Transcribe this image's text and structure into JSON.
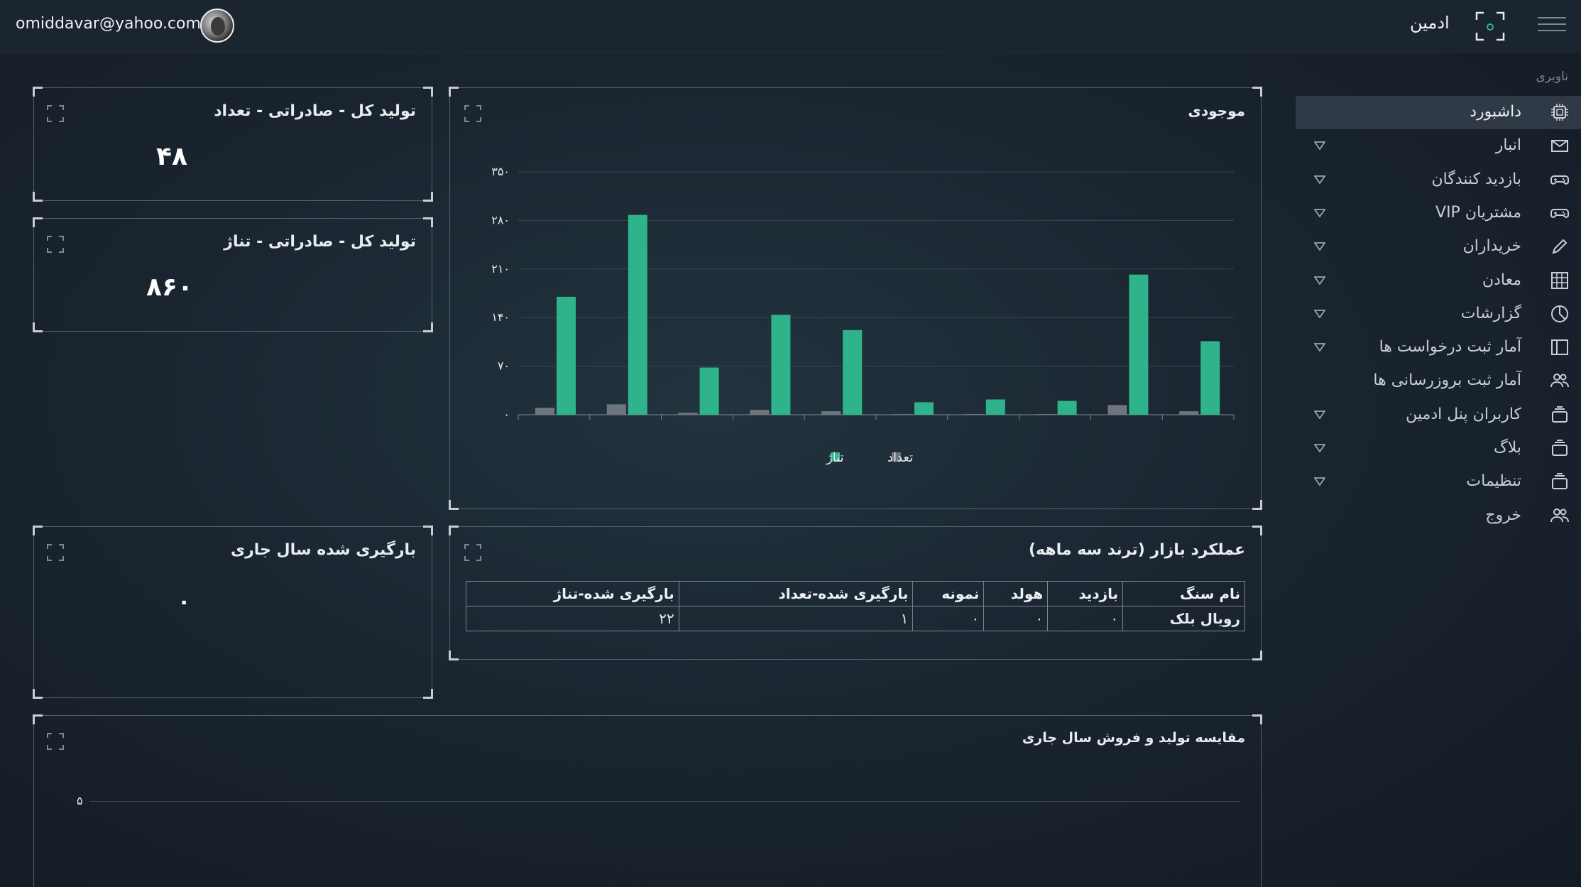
{
  "header": {
    "user_email": "omiddavar@yahoo.com",
    "brand_name": "ادمین",
    "avatar_icon": "user-avatar",
    "menu_icon": "hamburger-menu-icon"
  },
  "sidebar": {
    "title": "ناوبری",
    "items": [
      {
        "label": "داشبورد",
        "icon": "cpu-chip-icon",
        "has_caret": false,
        "active": true
      },
      {
        "label": "انبار",
        "icon": "envelope-icon",
        "has_caret": true
      },
      {
        "label": "بازدید کنندگان",
        "icon": "gamepad-icon",
        "has_caret": true
      },
      {
        "label": "مشتریان VIP",
        "icon": "gamepad-icon",
        "has_caret": true
      },
      {
        "label": "خریداران",
        "icon": "pencil-icon",
        "has_caret": true
      },
      {
        "label": "معادن",
        "icon": "grid-icon",
        "has_caret": true
      },
      {
        "label": "گزارشات",
        "icon": "pie-chart-icon",
        "has_caret": true
      },
      {
        "label": "آمار ثبت درخواست ها",
        "icon": "sidebar-panel-icon",
        "has_caret": true
      },
      {
        "label": "آمار ثبت بروزرسانی ها",
        "icon": "users-icon",
        "has_caret": false
      },
      {
        "label": "کاربران پنل ادمین",
        "icon": "layers-icon",
        "has_caret": true
      },
      {
        "label": "بلاگ",
        "icon": "layers-icon",
        "has_caret": true
      },
      {
        "label": "تنظیمات",
        "icon": "layers-icon",
        "has_caret": true
      },
      {
        "label": "خروج",
        "icon": "users-icon",
        "has_caret": false
      }
    ]
  },
  "stats": {
    "count_title": "تولید کل - صادراتی - تعداد",
    "count_value": "۴۸",
    "tonnage_title": "تولید کل - صادراتی - تناژ",
    "tonnage_value": "۸۶۰",
    "loaded_title": "بارگیری شده سال جاری",
    "loaded_value": "۰"
  },
  "inventory": {
    "title": "موجودی",
    "legend": [
      {
        "label": "تعداد",
        "color": "#6f757c"
      },
      {
        "label": "تناژ",
        "color": "#2fb38b"
      }
    ]
  },
  "chart_data": {
    "type": "bar",
    "title": "موجودی",
    "y_tick_labels": [
      "۰",
      "۷۰",
      "۱۴۰",
      "۲۱۰",
      "۲۸۰",
      "۳۵۰"
    ],
    "ylim": [
      0,
      350
    ],
    "grid": true,
    "legend_position": "bottom",
    "series": [
      {
        "name": "تعداد",
        "color": "#6f757c",
        "values": [
          10,
          15,
          3,
          7,
          5,
          1,
          1,
          1,
          14,
          5
        ]
      },
      {
        "name": "تناژ",
        "color": "#2fb38b",
        "values": [
          170,
          288,
          68,
          144,
          122,
          18,
          22,
          20,
          202,
          106
        ]
      }
    ]
  },
  "market": {
    "title": "عملکرد بازار (ترند سه ماهه)",
    "columns": [
      "نام سنگ",
      "بازدید",
      "هولد",
      "نمونه",
      "بارگیری شده-تعداد",
      "بارگیری شده-تناژ"
    ],
    "rows": [
      [
        "رویال بلک",
        "۰",
        "۰",
        "۰",
        "۱",
        "۲۲"
      ]
    ]
  },
  "comparison": {
    "title": "مقایسه تولید و فروش سال جاری",
    "y_tick": "۵"
  }
}
